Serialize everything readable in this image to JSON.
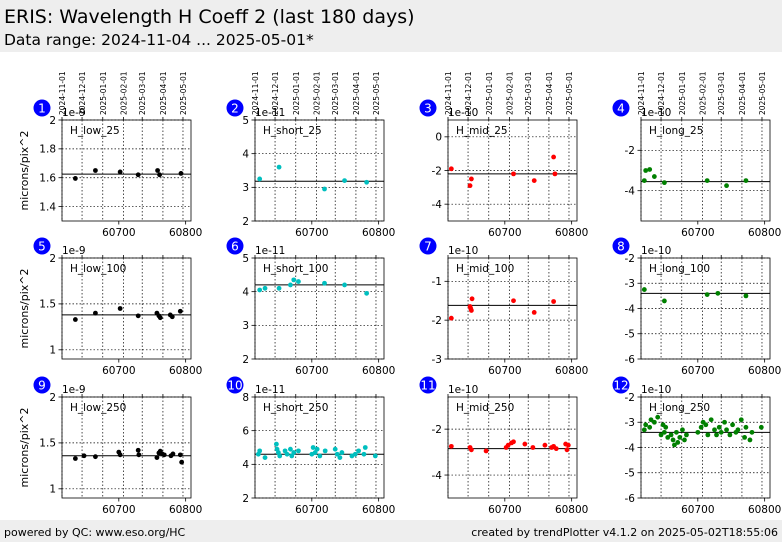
{
  "header": {
    "title": "ERIS: Wavelength H Coeff 2 (last 180 days)",
    "subtitle": "Data range: 2024-11-04 ... 2025-05-01*"
  },
  "footer": {
    "left": "powered by QC: www.eso.org/HC",
    "right": "created by trendPlotter v4.1.2 on 2025-05-02T18:55:06"
  },
  "date_ticks": [
    "2024-11-01",
    "2024-12-01",
    "2025-01-01",
    "2025-02-01",
    "2025-03-01",
    "2025-04-01",
    "2025-05-01"
  ],
  "colors": {
    "low": "#000000",
    "short": "#00bfbf",
    "mid": "#ff0000",
    "long": "#008000",
    "badge": "#0000ff"
  },
  "chart_data": [
    {
      "id": 1,
      "type": "scatter",
      "label": "H_low_25",
      "ylabel": "microns/pix^2",
      "multiplier": "1e-9",
      "xlim": [
        60615,
        60808
      ],
      "ylim": [
        1.3,
        2.0
      ],
      "yticks": [
        1.4,
        1.6,
        1.8,
        2.0
      ],
      "xticks": [
        60700,
        60800
      ],
      "ref": 1.625,
      "colorKey": "low",
      "x": [
        60635,
        60665,
        60702,
        60729,
        60758,
        60761,
        60793
      ],
      "y": [
        1.595,
        1.65,
        1.64,
        1.62,
        1.65,
        1.62,
        1.63
      ]
    },
    {
      "id": 2,
      "type": "scatter",
      "label": "H_short_25",
      "ylabel": "",
      "multiplier": "1e-11",
      "xlim": [
        60615,
        60808
      ],
      "ylim": [
        2,
        5
      ],
      "yticks": [
        2,
        3,
        4,
        5
      ],
      "xticks": [
        60700,
        60800
      ],
      "ref": 3.18,
      "colorKey": "short",
      "x": [
        60622,
        60651,
        60719,
        60749,
        60782
      ],
      "y": [
        3.25,
        3.6,
        2.95,
        3.2,
        3.15
      ]
    },
    {
      "id": 3,
      "type": "scatter",
      "label": "H_mid_25",
      "ylabel": "",
      "multiplier": "1e-10",
      "xlim": [
        60615,
        60808
      ],
      "ylim": [
        -5,
        1
      ],
      "yticks": [
        -4,
        -2,
        0
      ],
      "xticks": [
        60700,
        60800
      ],
      "ref": -2.2,
      "colorKey": "mid",
      "x": [
        60620,
        60648,
        60650,
        60713,
        60744,
        60773,
        60775
      ],
      "y": [
        -1.9,
        -2.9,
        -2.5,
        -2.2,
        -2.6,
        -1.2,
        -2.2
      ]
    },
    {
      "id": 4,
      "type": "scatter",
      "label": "H_long_25",
      "ylabel": "",
      "multiplier": "1e-10",
      "xlim": [
        60615,
        60808
      ],
      "ylim": [
        -5.5,
        -0.5
      ],
      "yticks": [
        -4,
        -2
      ],
      "xticks": [
        60700,
        60800
      ],
      "ref": -3.55,
      "colorKey": "long",
      "x": [
        60620,
        60622,
        60628,
        60635,
        60650,
        60714,
        60743,
        60772
      ],
      "y": [
        -3.5,
        -3.0,
        -2.95,
        -3.3,
        -3.6,
        -3.5,
        -3.75,
        -3.5
      ]
    },
    {
      "id": 5,
      "type": "scatter",
      "label": "H_low_100",
      "ylabel": "microns/pix^2",
      "multiplier": "1e-9",
      "xlim": [
        60615,
        60808
      ],
      "ylim": [
        0.9,
        2.0
      ],
      "yticks": [
        1.0,
        1.5,
        2.0
      ],
      "xticks": [
        60700,
        60800
      ],
      "ref": 1.38,
      "colorKey": "low",
      "x": [
        60635,
        60665,
        60702,
        60729,
        60757,
        60760,
        60762,
        60777,
        60780,
        60792
      ],
      "y": [
        1.33,
        1.4,
        1.45,
        1.37,
        1.4,
        1.37,
        1.35,
        1.38,
        1.36,
        1.42
      ]
    },
    {
      "id": 6,
      "type": "scatter",
      "label": "H_short_100",
      "ylabel": "",
      "multiplier": "1e-11",
      "xlim": [
        60615,
        60808
      ],
      "ylim": [
        2,
        5
      ],
      "yticks": [
        2,
        3,
        4,
        5
      ],
      "xticks": [
        60700,
        60800
      ],
      "ref": 4.2,
      "colorKey": "short",
      "x": [
        60622,
        60630,
        60651,
        60668,
        60673,
        60680,
        60719,
        60749,
        60782
      ],
      "y": [
        4.05,
        4.1,
        4.1,
        4.2,
        4.35,
        4.3,
        4.25,
        4.2,
        3.95
      ]
    },
    {
      "id": 7,
      "type": "scatter",
      "label": "H_mid_100",
      "ylabel": "",
      "multiplier": "1e-10",
      "xlim": [
        60615,
        60808
      ],
      "ylim": [
        -3,
        -0.4
      ],
      "yticks": [
        -3,
        -2,
        -1
      ],
      "xticks": [
        60700,
        60800
      ],
      "ref": -1.62,
      "colorKey": "mid",
      "x": [
        60620,
        60648,
        60649,
        60650,
        60651,
        60713,
        60744,
        60773
      ],
      "y": [
        -1.95,
        -1.65,
        -1.7,
        -1.75,
        -1.45,
        -1.5,
        -1.8,
        -1.52
      ]
    },
    {
      "id": 8,
      "type": "scatter",
      "label": "H_long_100",
      "ylabel": "",
      "multiplier": "1e-10",
      "xlim": [
        60615,
        60808
      ],
      "ylim": [
        -6,
        -2
      ],
      "yticks": [
        -6,
        -5,
        -4,
        -3,
        -2
      ],
      "xticks": [
        60700,
        60800
      ],
      "ref": -3.4,
      "colorKey": "long",
      "x": [
        60620,
        60650,
        60714,
        60730,
        60772
      ],
      "y": [
        -3.25,
        -3.7,
        -3.45,
        -3.4,
        -3.5
      ]
    },
    {
      "id": 9,
      "type": "scatter",
      "label": "H_low_250",
      "ylabel": "microns/pix^2",
      "multiplier": "1e-9",
      "xlim": [
        60615,
        60808
      ],
      "ylim": [
        0.9,
        2.0
      ],
      "yticks": [
        1.0,
        1.5,
        2.0
      ],
      "xticks": [
        60700,
        60800
      ],
      "ref": 1.36,
      "colorKey": "low",
      "x": [
        60635,
        60648,
        60665,
        60700,
        60702,
        60729,
        60730,
        60757,
        60760,
        60762,
        60765,
        60768,
        60778,
        60781,
        60792,
        60794
      ],
      "y": [
        1.33,
        1.36,
        1.35,
        1.4,
        1.37,
        1.42,
        1.37,
        1.34,
        1.39,
        1.41,
        1.38,
        1.37,
        1.36,
        1.38,
        1.37,
        1.29
      ]
    },
    {
      "id": 10,
      "type": "scatter",
      "label": "H_short_250",
      "ylabel": "",
      "multiplier": "1e-11",
      "xlim": [
        60615,
        60808
      ],
      "ylim": [
        2,
        8
      ],
      "yticks": [
        2,
        4,
        6,
        8
      ],
      "xticks": [
        60700,
        60800
      ],
      "ref": 4.6,
      "colorKey": "short",
      "x": [
        60620,
        60622,
        60630,
        60647,
        60648,
        60650,
        60652,
        60660,
        60663,
        60668,
        60670,
        60673,
        60680,
        60700,
        60702,
        60705,
        60708,
        60712,
        60720,
        60735,
        60738,
        60742,
        60745,
        60760,
        60765,
        60770,
        60778,
        60780,
        60795
      ],
      "y": [
        4.6,
        4.8,
        4.4,
        5.2,
        4.9,
        4.7,
        4.5,
        4.8,
        4.6,
        4.9,
        4.5,
        4.7,
        4.8,
        4.6,
        5.0,
        4.7,
        4.9,
        4.5,
        4.8,
        4.9,
        4.6,
        4.4,
        4.7,
        4.5,
        4.6,
        4.8,
        4.6,
        5.0,
        4.5
      ]
    },
    {
      "id": 11,
      "type": "scatter",
      "label": "H_mid_250",
      "ylabel": "",
      "multiplier": "1e-10",
      "xlim": [
        60615,
        60808
      ],
      "ylim": [
        -5,
        -0.6
      ],
      "yticks": [
        -4,
        -2
      ],
      "xticks": [
        60700,
        60800
      ],
      "ref": -2.85,
      "colorKey": "mid",
      "x": [
        60620,
        60648,
        60650,
        60672,
        60702,
        60705,
        60710,
        60713,
        60730,
        60742,
        60760,
        60770,
        60773,
        60777,
        60791,
        60793,
        60795
      ],
      "y": [
        -2.75,
        -2.8,
        -2.9,
        -2.95,
        -2.8,
        -2.7,
        -2.6,
        -2.55,
        -2.65,
        -2.8,
        -2.7,
        -2.8,
        -2.75,
        -2.85,
        -2.65,
        -2.9,
        -2.7
      ]
    },
    {
      "id": 12,
      "type": "scatter",
      "label": "H_long_250",
      "ylabel": "",
      "multiplier": "1e-10",
      "xlim": [
        60615,
        60808
      ],
      "ylim": [
        -6,
        -2
      ],
      "yticks": [
        -6,
        -5,
        -4,
        -3,
        -2
      ],
      "xticks": [
        60700,
        60800
      ],
      "ref": -3.4,
      "colorKey": "long",
      "x": [
        60620,
        60622,
        60628,
        60630,
        60635,
        60640,
        60645,
        60648,
        60650,
        60652,
        60655,
        60660,
        60663,
        60665,
        60668,
        60670,
        60673,
        60677,
        60680,
        60683,
        60700,
        60705,
        60708,
        60712,
        60715,
        60720,
        60725,
        60728,
        60732,
        60735,
        60740,
        60743,
        60748,
        60752,
        60757,
        60760,
        60765,
        60770,
        60772,
        60778,
        60781,
        60795
      ],
      "y": [
        -3.3,
        -3.1,
        -3.2,
        -2.9,
        -3.0,
        -2.8,
        -3.5,
        -3.1,
        -3.4,
        -3.2,
        -3.6,
        -3.5,
        -3.7,
        -3.9,
        -3.4,
        -3.8,
        -3.6,
        -3.3,
        -3.7,
        -3.5,
        -3.4,
        -3.2,
        -3.0,
        -3.1,
        -3.5,
        -2.9,
        -3.3,
        -3.5,
        -3.2,
        -3.4,
        -3.0,
        -3.3,
        -3.5,
        -3.1,
        -3.4,
        -3.3,
        -2.9,
        -3.6,
        -3.2,
        -3.7,
        -3.4,
        -3.2
      ]
    }
  ]
}
